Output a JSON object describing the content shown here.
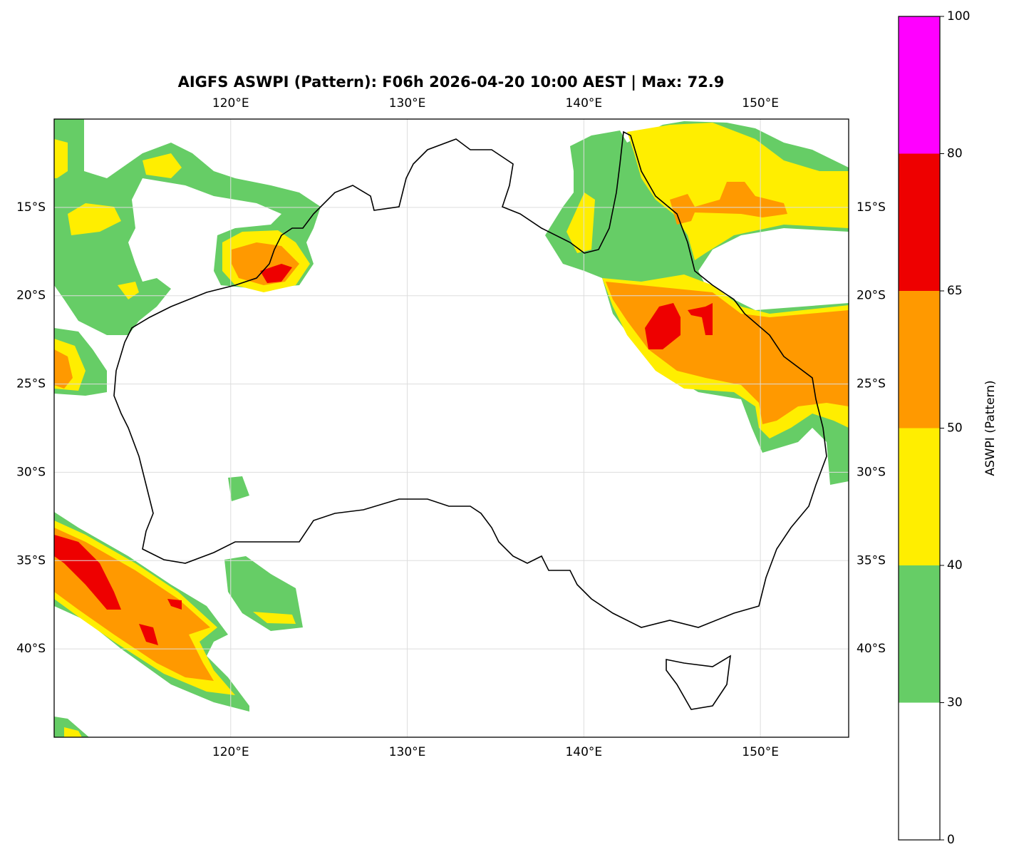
{
  "chart_data": {
    "type": "contourf",
    "title": "AIGFS ASWPI (Pattern): F06h 2026-04-20 10:00 AEST | Max: 72.9",
    "xlim": [
      110,
      155
    ],
    "ylim": [
      -45,
      -10
    ],
    "xticks": [
      {
        "value": 120,
        "label": "120°E"
      },
      {
        "value": 130,
        "label": "130°E"
      },
      {
        "value": 140,
        "label": "140°E"
      },
      {
        "value": 150,
        "label": "150°E"
      }
    ],
    "yticks": [
      {
        "value": -15,
        "label": "15°S"
      },
      {
        "value": -20,
        "label": "20°S"
      },
      {
        "value": -25,
        "label": "25°S"
      },
      {
        "value": -30,
        "label": "30°S"
      },
      {
        "value": -35,
        "label": "35°S"
      },
      {
        "value": -40,
        "label": "40°S"
      }
    ],
    "grid": true,
    "levels": [
      0,
      30,
      40,
      50,
      65,
      80,
      100
    ],
    "colors": [
      "#ffffff",
      "#66cd66",
      "#ffee00",
      "#ff9900",
      "#ee0000",
      "#ff00ff"
    ],
    "colorbar_label": "ASWPI (Pattern)"
  }
}
